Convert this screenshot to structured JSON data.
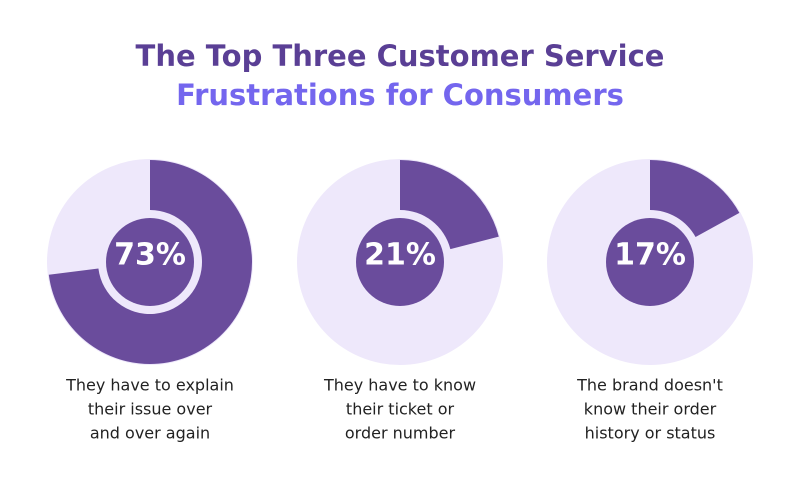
{
  "header": {
    "title": [
      "The Top Three Customer Service",
      "Frustrations for Consumers"
    ],
    "title_colors": [
      "#5a3f95",
      "#7466ee"
    ]
  },
  "chart_data": [
    {
      "type": "pie",
      "values": [
        73
      ],
      "value_labels": [
        "73%"
      ],
      "color": "#6a4c9c",
      "track_color": "#eee8fb",
      "caption": [
        "They have to explain",
        "their issue over",
        "and over again"
      ]
    },
    {
      "type": "pie",
      "values": [
        21
      ],
      "value_labels": [
        "21%"
      ],
      "color": "#6a4c9c",
      "track_color": "#eee8fb",
      "caption": [
        "They have to know",
        "their ticket or",
        "order number"
      ]
    },
    {
      "type": "pie",
      "values": [
        17
      ],
      "value_labels": [
        "17%"
      ],
      "color": "#6a4c9c",
      "track_color": "#eee8fb",
      "caption": [
        "The brand doesn't",
        "know their order",
        "history or status"
      ]
    }
  ]
}
